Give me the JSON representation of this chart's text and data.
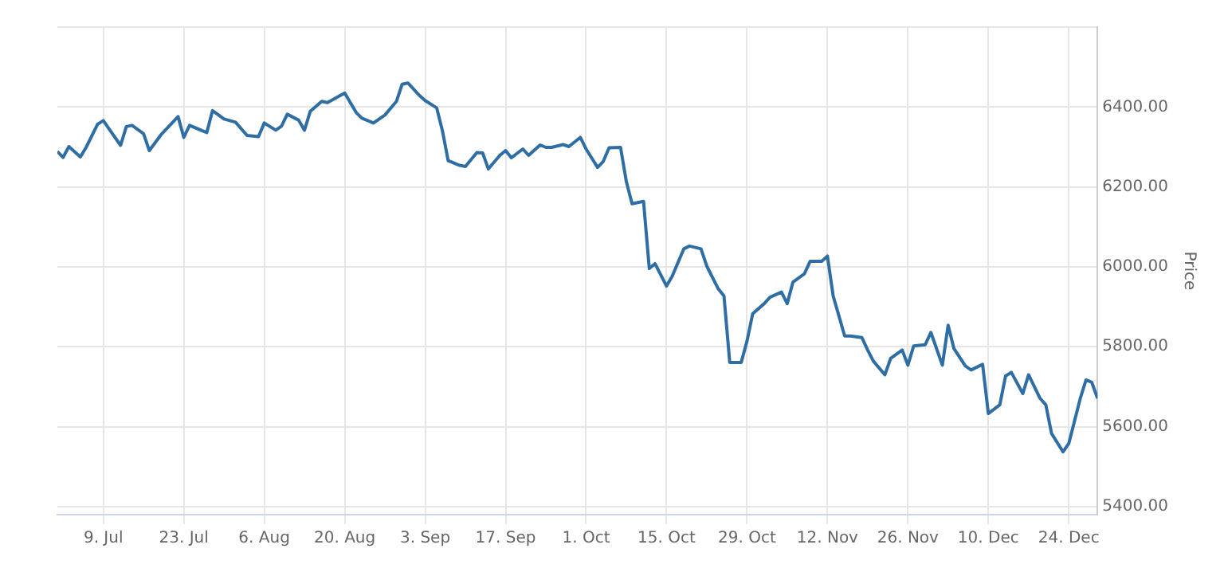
{
  "chart_data": {
    "type": "line",
    "ylabel": "Price",
    "x": [
      "--07-01",
      "--07-02",
      "--07-03",
      "--07-05",
      "--07-06",
      "--07-08",
      "--07-09",
      "--07-10",
      "--07-12",
      "--07-13",
      "--07-14",
      "--07-16",
      "--07-17",
      "--07-19",
      "--07-22",
      "--07-23",
      "--07-24",
      "--07-27",
      "--07-28",
      "--07-30",
      "--08-01",
      "--08-03",
      "--08-05",
      "--08-06",
      "--08-08",
      "--08-09",
      "--08-10",
      "--08-12",
      "--08-13",
      "--08-14",
      "--08-16",
      "--08-17",
      "--08-20",
      "--08-22",
      "--08-23",
      "--08-25",
      "--08-27",
      "--08-29",
      "--08-30",
      "--08-31",
      "--09-02",
      "--09-03",
      "--09-05",
      "--09-06",
      "--09-07",
      "--09-09",
      "--09-10",
      "--09-12",
      "--09-13",
      "--09-14",
      "--09-16",
      "--09-17",
      "--09-18",
      "--09-20",
      "--09-21",
      "--09-23",
      "--09-24",
      "--09-25",
      "--09-27",
      "--09-28",
      "--09-30",
      "--10-01",
      "--10-03",
      "--10-04",
      "--10-05",
      "--10-07",
      "--10-08",
      "--10-09",
      "--10-11",
      "--10-12",
      "--10-13",
      "--10-15",
      "--10-16",
      "--10-18",
      "--10-19",
      "--10-21",
      "--10-22",
      "--10-24",
      "--10-25",
      "--10-26",
      "--10-28",
      "--10-29",
      "--10-30",
      "--11-01",
      "--11-02",
      "--11-04",
      "--11-05",
      "--11-06",
      "--11-08",
      "--11-09",
      "--11-11",
      "--11-12",
      "--11-13",
      "--11-15",
      "--11-16",
      "--11-18",
      "--11-19",
      "--11-20",
      "--11-22",
      "--11-23",
      "--11-25",
      "--11-26",
      "--11-27",
      "--11-29",
      "--11-30",
      "--12-02",
      "--12-03",
      "--12-04",
      "--12-06",
      "--12-07",
      "--12-09",
      "--12-10",
      "--12-12",
      "--12-13",
      "--12-14",
      "--12-16",
      "--12-17",
      "--12-19",
      "--12-20",
      "--12-21",
      "--12-23",
      "--12-24",
      "--12-26",
      "--12-27",
      "--12-28",
      "--12-29"
    ],
    "series": [
      {
        "color": "#2f6ea5",
        "values": [
          6289,
          6274,
          6301,
          6275,
          6299,
          6357,
          6366,
          6345,
          6304,
          6351,
          6354,
          6333,
          6291,
          6330,
          6376,
          6324,
          6354,
          6336,
          6391,
          6370,
          6362,
          6329,
          6326,
          6360,
          6342,
          6352,
          6382,
          6367,
          6342,
          6389,
          6414,
          6411,
          6435,
          6386,
          6372,
          6360,
          6380,
          6414,
          6457,
          6460,
          6429,
          6416,
          6398,
          6341,
          6266,
          6254,
          6251,
          6286,
          6285,
          6245,
          6279,
          6291,
          6273,
          6295,
          6279,
          6305,
          6299,
          6299,
          6306,
          6301,
          6324,
          6295,
          6249,
          6264,
          6298,
          6299,
          6214,
          6158,
          6164,
          5996,
          6008,
          5952,
          5977,
          6045,
          6052,
          6045,
          6002,
          5945,
          5927,
          5761,
          5761,
          5814,
          5883,
          5908,
          5924,
          5937,
          5908,
          5962,
          5983,
          6014,
          6014,
          6027,
          5927,
          5827,
          5827,
          5823,
          5792,
          5764,
          5730,
          5771,
          5792,
          5754,
          5802,
          5805,
          5836,
          5754,
          5854,
          5796,
          5752,
          5742,
          5756,
          5633,
          5655,
          5727,
          5736,
          5683,
          5730,
          5671,
          5655,
          5583,
          5537,
          5558,
          5671,
          5717,
          5711,
          5671
        ]
      }
    ],
    "xlim": [
      "--07-01",
      "--12-29"
    ],
    "xticks": [
      {
        "value": "--07-09",
        "label": "9. Jul"
      },
      {
        "value": "--07-23",
        "label": "23. Jul"
      },
      {
        "value": "--08-06",
        "label": "6. Aug"
      },
      {
        "value": "--08-20",
        "label": "20. Aug"
      },
      {
        "value": "--09-03",
        "label": "3. Sep"
      },
      {
        "value": "--09-17",
        "label": "17. Sep"
      },
      {
        "value": "--10-01",
        "label": "1. Oct"
      },
      {
        "value": "--10-15",
        "label": "15. Oct"
      },
      {
        "value": "--10-29",
        "label": "29. Oct"
      },
      {
        "value": "--11-12",
        "label": "12. Nov"
      },
      {
        "value": "--11-26",
        "label": "26. Nov"
      },
      {
        "value": "--12-10",
        "label": "10. Dec"
      },
      {
        "value": "--12-24",
        "label": "24. Dec"
      }
    ],
    "ylim": [
      5380,
      6600
    ],
    "yticks": [
      {
        "value": 5400,
        "label": "5400.00"
      },
      {
        "value": 5600,
        "label": "5600.00"
      },
      {
        "value": 5800,
        "label": "5800.00"
      },
      {
        "value": 6000,
        "label": "6000.00"
      },
      {
        "value": 6200,
        "label": "6200.00"
      },
      {
        "value": 6400,
        "label": "6400.00"
      },
      {
        "value": 6600,
        "label": null
      }
    ],
    "grid": true,
    "legend": false,
    "marker": "none",
    "line_style": "solid"
  }
}
